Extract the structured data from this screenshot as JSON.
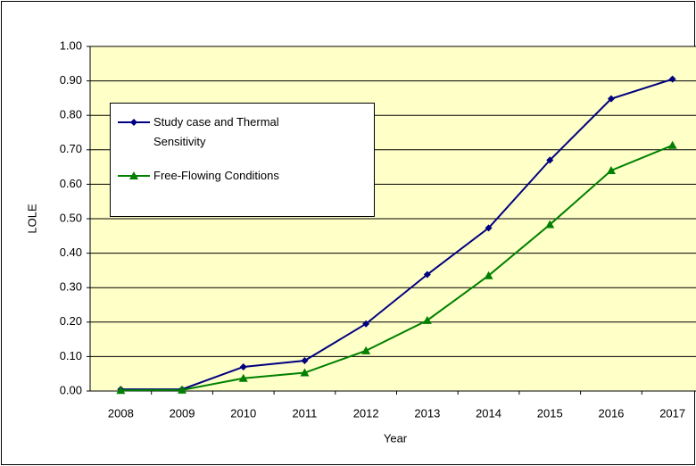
{
  "chart_data": {
    "type": "line",
    "x_label": "Year",
    "y_label": "LOLE",
    "categories": [
      "2008",
      "2009",
      "2010",
      "2011",
      "2012",
      "2013",
      "2014",
      "2015",
      "2016",
      "2017"
    ],
    "series": [
      {
        "name": "Study case and Thermal Sensitivity",
        "color": "#000080",
        "marker": "diamond",
        "values": [
          0.005,
          0.005,
          0.07,
          0.088,
          0.195,
          0.338,
          0.473,
          0.67,
          0.848,
          0.905
        ]
      },
      {
        "name": "Free-Flowing Conditions",
        "color": "#008000",
        "marker": "triangle",
        "values": [
          0.002,
          0.003,
          0.037,
          0.053,
          0.117,
          0.205,
          0.335,
          0.483,
          0.64,
          0.713
        ]
      }
    ],
    "ylim": [
      0,
      1
    ],
    "yticks": [
      {
        "value": 0,
        "label": "0.00"
      },
      {
        "value": 0.1,
        "label": "0.10"
      },
      {
        "value": 0.2,
        "label": "0.20"
      },
      {
        "value": 0.3,
        "label": "0.30"
      },
      {
        "value": 0.4,
        "label": "0.40"
      },
      {
        "value": 0.5,
        "label": "0.50"
      },
      {
        "value": 0.6,
        "label": "0.60"
      },
      {
        "value": 0.7,
        "label": "0.70"
      },
      {
        "value": 0.8,
        "label": "0.80"
      },
      {
        "value": 0.9,
        "label": "0.90"
      },
      {
        "value": 1,
        "label": "1.00"
      }
    ],
    "grid": true,
    "plot_background": "#ffffc8"
  }
}
